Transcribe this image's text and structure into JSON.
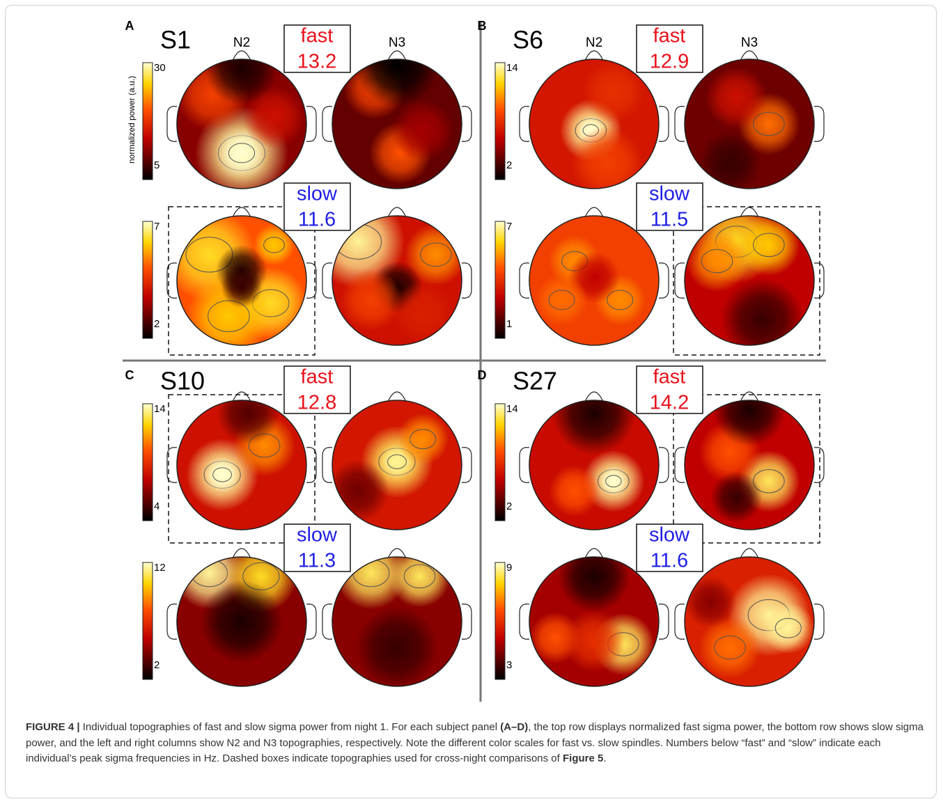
{
  "figure": {
    "panels": [
      {
        "letter": "A",
        "subject": "S1",
        "columns": [
          "N2",
          "N3"
        ],
        "colorbar_label": "normalized power (a.u.)",
        "fast": {
          "label": "fast",
          "frequency": 13.2,
          "scale": [
            30,
            5
          ]
        },
        "slow": {
          "label": "slow",
          "frequency": 11.6,
          "scale": [
            7,
            2
          ]
        }
      },
      {
        "letter": "B",
        "subject": "S6",
        "columns": [
          "N2",
          "N3"
        ],
        "fast": {
          "label": "fast",
          "frequency": 12.9,
          "scale": [
            14,
            2
          ]
        },
        "slow": {
          "label": "slow",
          "frequency": 11.5,
          "scale": [
            7,
            1
          ]
        }
      },
      {
        "letter": "C",
        "subject": "S10",
        "fast": {
          "label": "fast",
          "frequency": 12.8,
          "scale": [
            14,
            4
          ]
        },
        "slow": {
          "label": "slow",
          "frequency": 11.3,
          "scale": [
            12,
            2
          ]
        }
      },
      {
        "letter": "D",
        "subject": "S27",
        "fast": {
          "label": "fast",
          "frequency": 14.2,
          "scale": [
            14,
            2
          ]
        },
        "slow": {
          "label": "slow",
          "frequency": 11.6,
          "scale": [
            9,
            3
          ]
        }
      }
    ],
    "caption": {
      "label": "FIGURE 4 |",
      "parts": [
        " Individual topographies of fast and slow sigma power from night 1. For each subject panel ",
        "(A–D)",
        ", the top row displays normalized fast sigma power, the bottom row shows slow sigma power, and the left and right columns show N2 and N3 topographies, respectively. Note the different color scales for fast vs. slow spindles. Numbers below “fast” and “slow” indicate each individual’s peak sigma frequencies in Hz. Dashed boxes indicate topographies used for cross-night comparisons of ",
        "Figure 5",
        "."
      ]
    }
  }
}
